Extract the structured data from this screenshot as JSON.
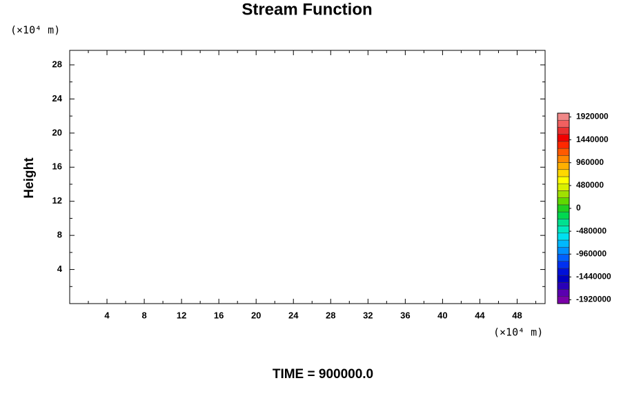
{
  "chart_data": {
    "type": "contour",
    "title": "Stream Function",
    "ylabel": "Height",
    "ylabel_units": "(×10⁴ m)",
    "xlabel_units": "(×10⁴ m)",
    "footer": "TIME = 900000.0",
    "xlim": [
      0,
      51
    ],
    "xticks": [
      4,
      8,
      12,
      16,
      20,
      24,
      28,
      32,
      36,
      40,
      44,
      48
    ],
    "xminorticks": [
      2,
      6,
      10,
      14,
      18,
      22,
      26,
      30,
      34,
      38,
      42,
      46,
      50
    ],
    "ylim": [
      0,
      29.7
    ],
    "yticks": [
      4,
      8,
      12,
      16,
      20,
      24,
      28
    ],
    "yminorticks": [
      2,
      6,
      10,
      14,
      18,
      22,
      26
    ],
    "colorbar": {
      "clim": [
        -2000000,
        2000000
      ],
      "ticks": [
        -1920000,
        -1440000,
        -960000,
        -480000,
        0,
        480000,
        960000,
        1440000,
        1920000
      ],
      "colors": [
        "#7a00a8",
        "#5a00b0",
        "#2a00b8",
        "#0000c0",
        "#0010d8",
        "#0030f0",
        "#0060ff",
        "#0090ff",
        "#00b8ff",
        "#00e0f0",
        "#00e8c0",
        "#00e090",
        "#00d850",
        "#20d020",
        "#60d800",
        "#a0e000",
        "#d8f000",
        "#ffff00",
        "#ffd800",
        "#ffb000",
        "#ff8800",
        "#ff5a00",
        "#ff2800",
        "#f00000",
        "#e83030",
        "#f06060",
        "#f08888"
      ]
    }
  }
}
